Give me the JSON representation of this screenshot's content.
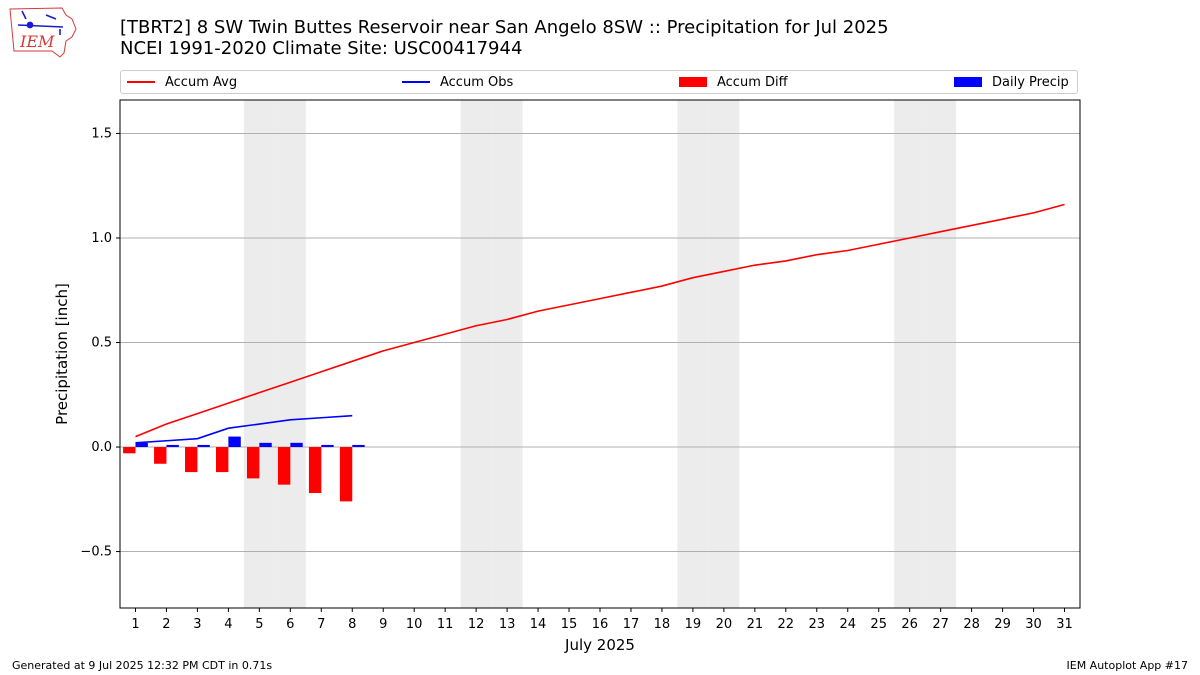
{
  "header": {
    "logo_text": "IEM",
    "title_line1": "[TBRT2] 8 SW Twin Buttes Reservoir near San Angelo 8SW :: Precipitation for Jul 2025",
    "title_line2": "NCEI 1991-2020 Climate Site: USC00417944"
  },
  "legend": {
    "items": [
      {
        "label": "Accum Avg",
        "kind": "line",
        "color": "#ff0000"
      },
      {
        "label": "Accum Obs",
        "kind": "line",
        "color": "#0000ff"
      },
      {
        "label": "Accum Diff",
        "kind": "bar",
        "color": "#ff0000"
      },
      {
        "label": "Daily Precip",
        "kind": "bar",
        "color": "#0000ff"
      }
    ]
  },
  "footer": {
    "generated": "Generated at 9 Jul 2025 12:32 PM CDT in 0.71s",
    "app": "IEM Autoplot App #17"
  },
  "chart_data": {
    "type": "bar",
    "title": "[TBRT2] 8 SW Twin Buttes Reservoir near San Angelo 8SW :: Precipitation for Jul 2025",
    "subtitle": "NCEI 1991-2020 Climate Site: USC00417944",
    "xlabel": "July 2025",
    "ylabel": "Precipitation [inch]",
    "xlim": [
      0.5,
      31.5
    ],
    "ylim": [
      -0.77,
      1.66
    ],
    "yticks": [
      -0.5,
      0.0,
      0.5,
      1.0,
      1.5
    ],
    "ytick_labels": [
      "−0.5",
      "0.0",
      "0.5",
      "1.0",
      "1.5"
    ],
    "x": [
      1,
      2,
      3,
      4,
      5,
      6,
      7,
      8,
      9,
      10,
      11,
      12,
      13,
      14,
      15,
      16,
      17,
      18,
      19,
      20,
      21,
      22,
      23,
      24,
      25,
      26,
      27,
      28,
      29,
      30,
      31
    ],
    "weekend_days": [
      5,
      6,
      12,
      13,
      19,
      20,
      26,
      27
    ],
    "grid": "y",
    "legend_position": "top",
    "series": [
      {
        "name": "Accum Avg",
        "type": "line",
        "color": "#ff0000",
        "x": [
          1,
          2,
          3,
          4,
          5,
          6,
          7,
          8,
          9,
          10,
          11,
          12,
          13,
          14,
          15,
          16,
          17,
          18,
          19,
          20,
          21,
          22,
          23,
          24,
          25,
          26,
          27,
          28,
          29,
          30,
          31
        ],
        "values": [
          0.05,
          0.11,
          0.16,
          0.21,
          0.26,
          0.31,
          0.36,
          0.41,
          0.46,
          0.5,
          0.54,
          0.58,
          0.61,
          0.65,
          0.68,
          0.71,
          0.74,
          0.77,
          0.81,
          0.84,
          0.87,
          0.89,
          0.92,
          0.94,
          0.97,
          1.0,
          1.03,
          1.06,
          1.09,
          1.12,
          1.16
        ]
      },
      {
        "name": "Accum Obs",
        "type": "line",
        "color": "#0000ff",
        "x": [
          1,
          2,
          3,
          4,
          5,
          6,
          7,
          8
        ],
        "values": [
          0.02,
          0.03,
          0.04,
          0.09,
          0.11,
          0.13,
          0.14,
          0.15
        ]
      },
      {
        "name": "Accum Diff",
        "type": "bar",
        "color": "#ff0000",
        "x": [
          1,
          2,
          3,
          4,
          5,
          6,
          7,
          8
        ],
        "values": [
          -0.03,
          -0.08,
          -0.12,
          -0.12,
          -0.15,
          -0.18,
          -0.22,
          -0.26
        ]
      },
      {
        "name": "Daily Precip",
        "type": "bar",
        "color": "#0000ff",
        "x": [
          1,
          2,
          3,
          4,
          5,
          6,
          7,
          8
        ],
        "values": [
          0.02,
          0.01,
          0.01,
          0.05,
          0.02,
          0.02,
          0.01,
          0.01
        ]
      }
    ]
  }
}
